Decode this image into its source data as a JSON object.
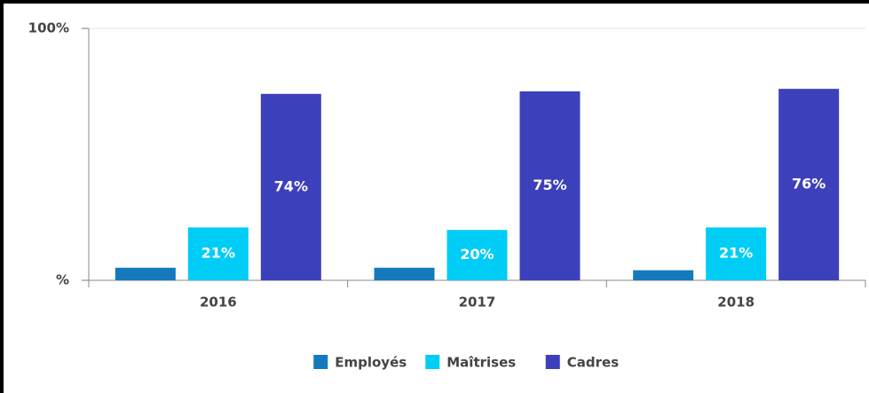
{
  "chart_data": {
    "type": "bar",
    "categories": [
      "2016",
      "2017",
      "2018"
    ],
    "series": [
      {
        "name": "Employés",
        "color": "#1479bd",
        "values": [
          5,
          5,
          4
        ]
      },
      {
        "name": "Maîtrises",
        "color": "#00cdf5",
        "values": [
          21,
          20,
          21
        ],
        "value_labels": [
          "21%",
          "20%",
          "21%"
        ]
      },
      {
        "name": "Cadres",
        "color": "#3d40bb",
        "values": [
          74,
          75,
          76
        ],
        "value_labels": [
          "74%",
          "75%",
          "76%"
        ]
      }
    ],
    "ylim": [
      0,
      100
    ],
    "yticks": [
      {
        "value": 0,
        "label": "%"
      },
      {
        "value": 100,
        "label": "100%"
      }
    ],
    "grid": true,
    "legend": "bottom"
  }
}
